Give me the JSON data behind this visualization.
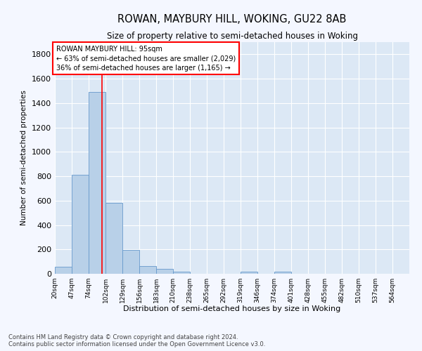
{
  "title": "ROWAN, MAYBURY HILL, WOKING, GU22 8AB",
  "subtitle": "Size of property relative to semi-detached houses in Woking",
  "xlabel": "Distribution of semi-detached houses by size in Woking",
  "ylabel": "Number of semi-detached properties",
  "footnote1": "Contains HM Land Registry data © Crown copyright and database right 2024.",
  "footnote2": "Contains public sector information licensed under the Open Government Licence v3.0.",
  "annotation_title": "ROWAN MAYBURY HILL: 95sqm",
  "annotation_line2": "← 63% of semi-detached houses are smaller (2,029)",
  "annotation_line3": "36% of semi-detached houses are larger (1,165) →",
  "property_size": 95,
  "bar_color": "#b8d0e8",
  "bar_edge_color": "#6699cc",
  "red_line_x": 95,
  "ylim": [
    0,
    1900
  ],
  "yticks": [
    0,
    200,
    400,
    600,
    800,
    1000,
    1200,
    1400,
    1600,
    1800
  ],
  "bin_edges": [
    20,
    47,
    74,
    101,
    128,
    155,
    182,
    209,
    236,
    263,
    290,
    317,
    344,
    371,
    398,
    425,
    452,
    479,
    506,
    533,
    560,
    587
  ],
  "bin_labels": [
    "20sqm",
    "47sqm",
    "74sqm",
    "102sqm",
    "129sqm",
    "156sqm",
    "183sqm",
    "210sqm",
    "238sqm",
    "265sqm",
    "292sqm",
    "319sqm",
    "346sqm",
    "374sqm",
    "401sqm",
    "428sqm",
    "455sqm",
    "482sqm",
    "510sqm",
    "537sqm",
    "564sqm"
  ],
  "counts": [
    55,
    810,
    1490,
    580,
    195,
    65,
    42,
    20,
    0,
    0,
    0,
    15,
    0,
    20,
    0,
    0,
    0,
    0,
    0,
    0,
    0
  ],
  "background_color": "#f4f7ff",
  "plot_bg_color": "#dce8f5"
}
